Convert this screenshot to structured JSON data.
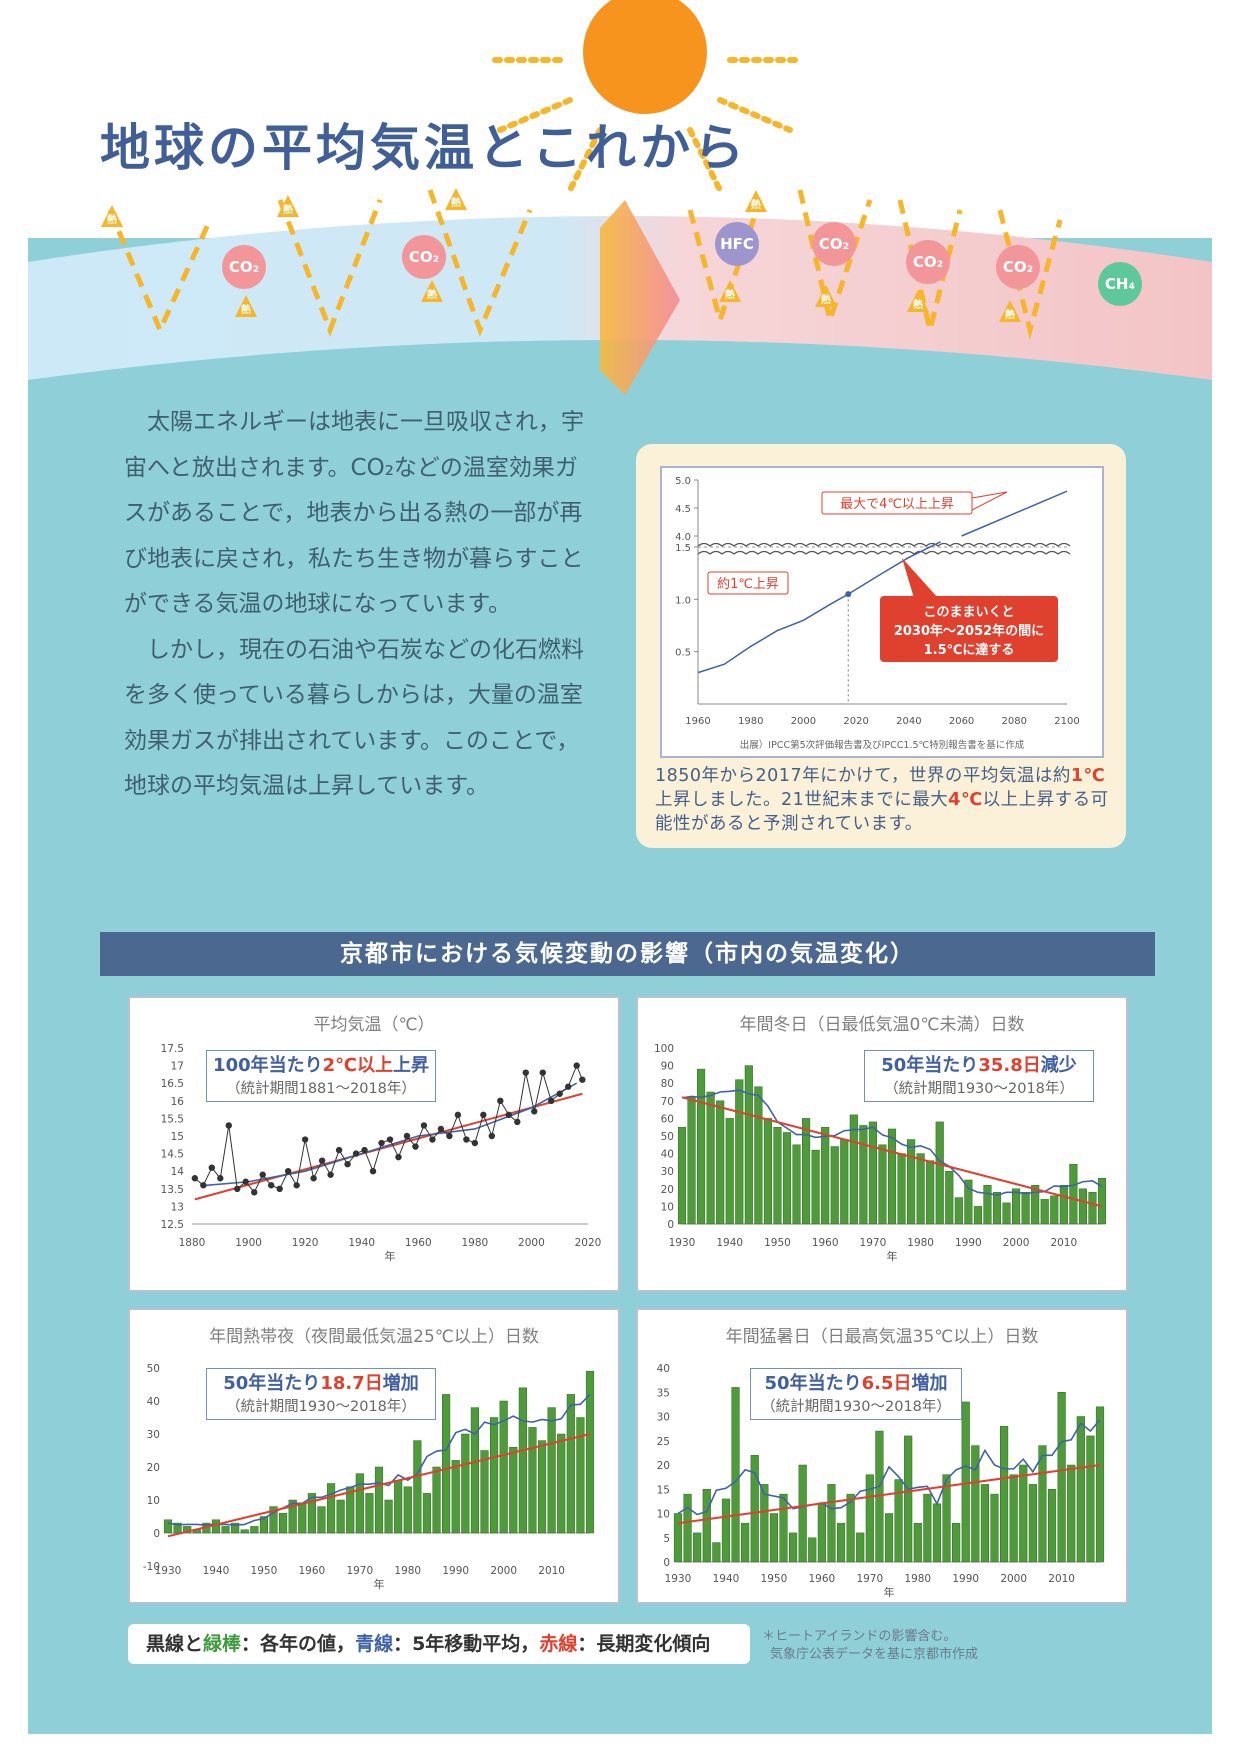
{
  "title": "地球の平均気温とこれから",
  "sky": {
    "gases_left": [
      "CO₂",
      "CO₂"
    ],
    "gases_right": [
      "HFC",
      "CO₂",
      "CO₂",
      "CO₂",
      "CH₄"
    ],
    "heat_label": "熱"
  },
  "intro": {
    "p1": "太陽エネルギーは地表に一旦吸収され，宇宙へと放出されます。CO₂などの温室効果ガスがあることで，地表から出る熱の一部が再び地表に戻され，私たち生き物が暮らすことができる気温の地球になっています。",
    "p2": "しかし，現在の石油や石炭などの化石燃料を多く使っている暮らしからは，大量の温室効果ガスが排出されています。このことで，地球の平均気温は上昇しています。"
  },
  "ipcc": {
    "callout_max": "最大で4℃以上上昇",
    "callout_1c": "約1℃上昇",
    "callout_box": [
      "このままいくと",
      "2030年～2052年の間に",
      "1.5℃に達する"
    ],
    "source": "出展）IPCC第5次評価報告書及びIPCC1.5℃特別報告書を基に作成",
    "caption_a": "1850年から2017年にかけて，世界の平均気温は約",
    "caption_b": "1℃",
    "caption_c": "上昇しました。21世紀末までに最大",
    "caption_d": "4℃",
    "caption_e": "以上上昇する可能性があると予測されています。"
  },
  "section_title": "京都市における気候変動の影響（市内の気温変化）",
  "legend": {
    "a": "黒線",
    "b": "と",
    "c": "緑棒",
    "d": "：各年の値，",
    "e": "青線",
    "f": "：5年移動平均，",
    "g": "赤線",
    "h": "：長期変化傾向"
  },
  "note": [
    "＊ヒートアイランドの影響含む。",
    "気象庁公表データを基に京都市作成"
  ],
  "chart_data": [
    {
      "type": "line",
      "title": "",
      "xlabel": "",
      "ylabel": "",
      "x_ticks": [
        1960,
        1980,
        2000,
        2020,
        2040,
        2060,
        2080,
        2100
      ],
      "y_ticks": [
        0.5,
        1.0,
        1.5,
        4.0,
        4.5,
        5.0
      ],
      "x": [
        1960,
        1970,
        1980,
        1990,
        2000,
        2010,
        2017,
        2030,
        2040,
        2052,
        2060
      ],
      "y": [
        0.3,
        0.38,
        0.55,
        0.7,
        0.8,
        0.95,
        1.05,
        1.25,
        1.4,
        1.55,
        4.0
      ],
      "projection_max": {
        "x": [
          2060,
          2100
        ],
        "y": [
          4.0,
          4.8
        ]
      },
      "threshold": 1.5,
      "marker": {
        "x": 2017,
        "y": 1.0
      }
    },
    {
      "type": "line",
      "title": "平均気温（℃）",
      "xlabel": "年",
      "ylabel": "",
      "ylim": [
        12.5,
        17.5
      ],
      "xlim": [
        1880,
        2020
      ],
      "x_ticks": [
        1880,
        1900,
        1920,
        1940,
        1960,
        1980,
        2000,
        2020
      ],
      "y_ticks": [
        12.5,
        13,
        13.5,
        14,
        14.5,
        15,
        15.5,
        16,
        16.5,
        17,
        17.5
      ],
      "annotation": {
        "line1_a": "100年当たり",
        "line1_b": "2℃以上",
        "line1_c": "上昇",
        "line2": "（統計期間1881～2018年）"
      },
      "series": [
        {
          "x": [
            1881,
            1884,
            1887,
            1890,
            1893,
            1896,
            1899,
            1902,
            1905,
            1908,
            1911,
            1914,
            1917,
            1920,
            1923,
            1926,
            1929,
            1932,
            1935,
            1938,
            1941,
            1944,
            1947,
            1950,
            1953,
            1956,
            1959,
            1962,
            1965,
            1968,
            1971,
            1974,
            1977,
            1980,
            1983,
            1986,
            1989,
            1992,
            1995,
            1998,
            2001,
            2004,
            2007,
            2010,
            2013,
            2016,
            2018
          ],
          "y": [
            13.8,
            13.6,
            14.1,
            13.8,
            15.3,
            13.5,
            13.7,
            13.4,
            13.9,
            13.6,
            13.5,
            14.0,
            13.6,
            14.9,
            13.8,
            14.3,
            13.9,
            14.6,
            14.2,
            14.5,
            14.6,
            14.0,
            14.8,
            14.9,
            14.4,
            15.0,
            14.7,
            15.3,
            14.9,
            15.2,
            15.0,
            15.6,
            14.9,
            14.8,
            15.6,
            15.0,
            16.0,
            15.6,
            15.4,
            16.8,
            15.7,
            16.8,
            16.0,
            16.2,
            16.4,
            17.0,
            16.6
          ]
        },
        {
          "x": [
            1885,
            1900,
            1920,
            1940,
            1960,
            1980,
            2000,
            2016
          ],
          "y": [
            13.6,
            13.7,
            14.0,
            14.5,
            15.0,
            15.2,
            15.8,
            16.5
          ]
        },
        {
          "x": [
            1881,
            2018
          ],
          "y": [
            13.2,
            16.2
          ]
        }
      ]
    },
    {
      "type": "bar",
      "title": "年間冬日（日最低気温0℃未満）日数",
      "xlabel": "年",
      "ylabel": "",
      "ylim": [
        0,
        100
      ],
      "xlim": [
        1930,
        2018
      ],
      "x_ticks": [
        1930,
        1940,
        1950,
        1960,
        1970,
        1980,
        1990,
        2000,
        2010
      ],
      "y_ticks": [
        0,
        10,
        20,
        30,
        40,
        50,
        60,
        70,
        80,
        90,
        100
      ],
      "annotation": {
        "line1_a": "50年当たり",
        "line1_b": "35.8日",
        "line1_c": "減少",
        "line2": "（統計期間1930～2018年）"
      },
      "x": [
        1930,
        1932,
        1934,
        1936,
        1938,
        1940,
        1942,
        1944,
        1946,
        1948,
        1950,
        1952,
        1954,
        1956,
        1958,
        1960,
        1962,
        1964,
        1966,
        1968,
        1970,
        1972,
        1974,
        1976,
        1978,
        1980,
        1982,
        1984,
        1986,
        1988,
        1990,
        1992,
        1994,
        1996,
        1998,
        2000,
        2002,
        2004,
        2006,
        2008,
        2010,
        2012,
        2014,
        2016,
        2018
      ],
      "values": [
        55,
        72,
        88,
        75,
        70,
        60,
        82,
        90,
        78,
        60,
        55,
        52,
        45,
        60,
        42,
        55,
        44,
        48,
        62,
        56,
        58,
        45,
        54,
        40,
        48,
        40,
        36,
        58,
        30,
        15,
        25,
        10,
        22,
        18,
        12,
        20,
        18,
        22,
        14,
        16,
        22,
        34,
        20,
        18,
        26
      ],
      "trend": {
        "x": [
          1930,
          2018
        ],
        "y": [
          72,
          10
        ]
      }
    },
    {
      "type": "bar",
      "title": "年間熱帯夜（夜間最低気温25℃以上）日数",
      "xlabel": "年",
      "ylabel": "",
      "ylim": [
        -10,
        50
      ],
      "xlim": [
        1930,
        2018
      ],
      "x_ticks": [
        1930,
        1940,
        1950,
        1960,
        1970,
        1980,
        1990,
        2000,
        2010
      ],
      "y_ticks": [
        -10,
        0,
        10,
        20,
        30,
        40,
        50
      ],
      "annotation": {
        "line1_a": "50年当たり",
        "line1_b": "18.7日",
        "line1_c": "増加",
        "line2": "（統計期間1930～2018年）"
      },
      "x": [
        1930,
        1932,
        1934,
        1936,
        1938,
        1940,
        1942,
        1944,
        1946,
        1948,
        1950,
        1952,
        1954,
        1956,
        1958,
        1960,
        1962,
        1964,
        1966,
        1968,
        1970,
        1972,
        1974,
        1976,
        1978,
        1980,
        1982,
        1984,
        1986,
        1988,
        1990,
        1992,
        1994,
        1996,
        1998,
        2000,
        2002,
        2004,
        2006,
        2008,
        2010,
        2012,
        2014,
        2016,
        2018
      ],
      "values": [
        4,
        3,
        2,
        1,
        3,
        4,
        2,
        3,
        1,
        2,
        5,
        8,
        6,
        10,
        9,
        12,
        8,
        15,
        10,
        14,
        18,
        12,
        20,
        10,
        16,
        14,
        28,
        12,
        20,
        42,
        22,
        30,
        38,
        25,
        35,
        40,
        26,
        44,
        32,
        28,
        38,
        30,
        42,
        35,
        49
      ],
      "trend": {
        "x": [
          1930,
          2018
        ],
        "y": [
          -1,
          30
        ]
      }
    },
    {
      "type": "bar",
      "title": "年間猛暑日（日最高気温35℃以上）日数",
      "xlabel": "年",
      "ylabel": "",
      "ylim": [
        0,
        40
      ],
      "xlim": [
        1930,
        2018
      ],
      "x_ticks": [
        1930,
        1940,
        1950,
        1960,
        1970,
        1980,
        1990,
        2000,
        2010
      ],
      "y_ticks": [
        0,
        5,
        10,
        15,
        20,
        25,
        30,
        35,
        40
      ],
      "annotation": {
        "line1_a": "50年当たり",
        "line1_b": "6.5日",
        "line1_c": "増加",
        "line2": "（統計期間1930～2018年）"
      },
      "x": [
        1930,
        1932,
        1934,
        1936,
        1938,
        1940,
        1942,
        1944,
        1946,
        1948,
        1950,
        1952,
        1954,
        1956,
        1958,
        1960,
        1962,
        1964,
        1966,
        1968,
        1970,
        1972,
        1974,
        1976,
        1978,
        1980,
        1982,
        1984,
        1986,
        1988,
        1990,
        1992,
        1994,
        1996,
        1998,
        2000,
        2002,
        2004,
        2006,
        2008,
        2010,
        2012,
        2014,
        2016,
        2018
      ],
      "values": [
        10,
        14,
        6,
        15,
        4,
        13,
        36,
        8,
        22,
        16,
        10,
        14,
        6,
        20,
        5,
        12,
        16,
        8,
        14,
        6,
        18,
        27,
        10,
        17,
        26,
        8,
        14,
        12,
        18,
        8,
        33,
        24,
        16,
        14,
        28,
        18,
        20,
        16,
        24,
        15,
        35,
        20,
        30,
        26,
        32
      ],
      "trend": {
        "x": [
          1930,
          2018
        ],
        "y": [
          8,
          20
        ]
      }
    }
  ]
}
